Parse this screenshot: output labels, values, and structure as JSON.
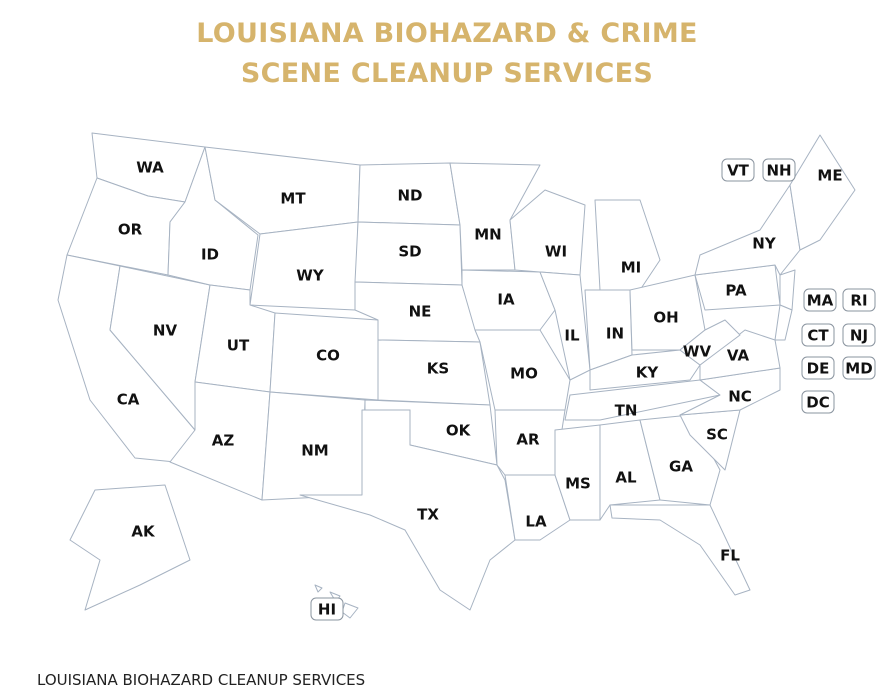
{
  "header": {
    "title": "LOUISIANA BIOHAZARD & CRIME SCENE CLEANUP SERVICES"
  },
  "map": {
    "states": [
      "WA",
      "OR",
      "CA",
      "NV",
      "ID",
      "MT",
      "WY",
      "UT",
      "CO",
      "AZ",
      "NM",
      "ND",
      "SD",
      "NE",
      "KS",
      "OK",
      "TX",
      "MN",
      "IA",
      "MO",
      "AR",
      "LA",
      "WI",
      "IL",
      "MI",
      "IN",
      "OH",
      "KY",
      "TN",
      "MS",
      "AL",
      "GA",
      "FL",
      "SC",
      "NC",
      "VA",
      "WV",
      "PA",
      "NY",
      "ME",
      "AK"
    ],
    "boxed": [
      "VT",
      "NH",
      "MA",
      "RI",
      "CT",
      "NJ",
      "DE",
      "MD",
      "DC",
      "HI"
    ]
  },
  "footer": {
    "text": "LOUISIANA BIOHAZARD CLEANUP SERVICES"
  }
}
